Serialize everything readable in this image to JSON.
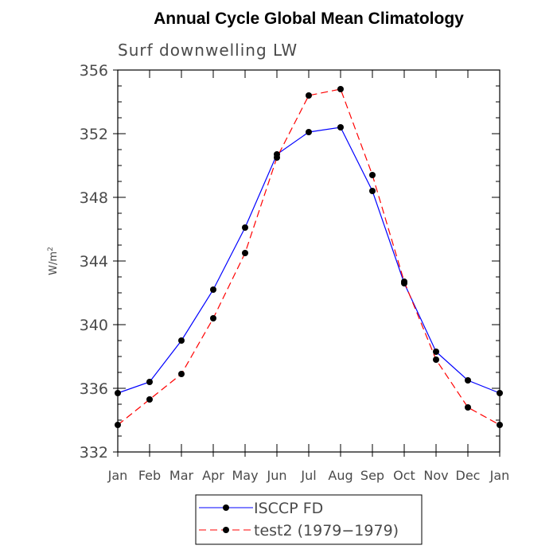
{
  "chart_data": {
    "type": "line",
    "title": "Annual Cycle Global Mean Climatology",
    "subtitle": "Surf downwelling LW",
    "ylabel_base": "W/m",
    "ylabel_sup": "2",
    "ylim": [
      332,
      356
    ],
    "yticks": [
      "332",
      "336",
      "340",
      "344",
      "348",
      "352",
      "356"
    ],
    "categories": [
      "Jan",
      "Feb",
      "Mar",
      "Apr",
      "May",
      "Jun",
      "Jul",
      "Aug",
      "Sep",
      "Oct",
      "Nov",
      "Dec",
      "Jan"
    ],
    "series": [
      {
        "name": "ISCCP FD",
        "color": "#0000ff",
        "dash": "solid",
        "values": [
          335.7,
          336.4,
          339.0,
          342.2,
          346.1,
          350.7,
          352.1,
          352.4,
          348.4,
          342.6,
          338.3,
          336.5,
          335.7
        ]
      },
      {
        "name": "test2 (1979−1979)",
        "color": "#ff0000",
        "dash": "dashed",
        "values": [
          333.7,
          335.3,
          336.9,
          340.4,
          344.5,
          350.5,
          354.4,
          354.8,
          349.4,
          342.7,
          337.8,
          334.8,
          333.7
        ]
      }
    ],
    "legend_position": "bottom"
  }
}
